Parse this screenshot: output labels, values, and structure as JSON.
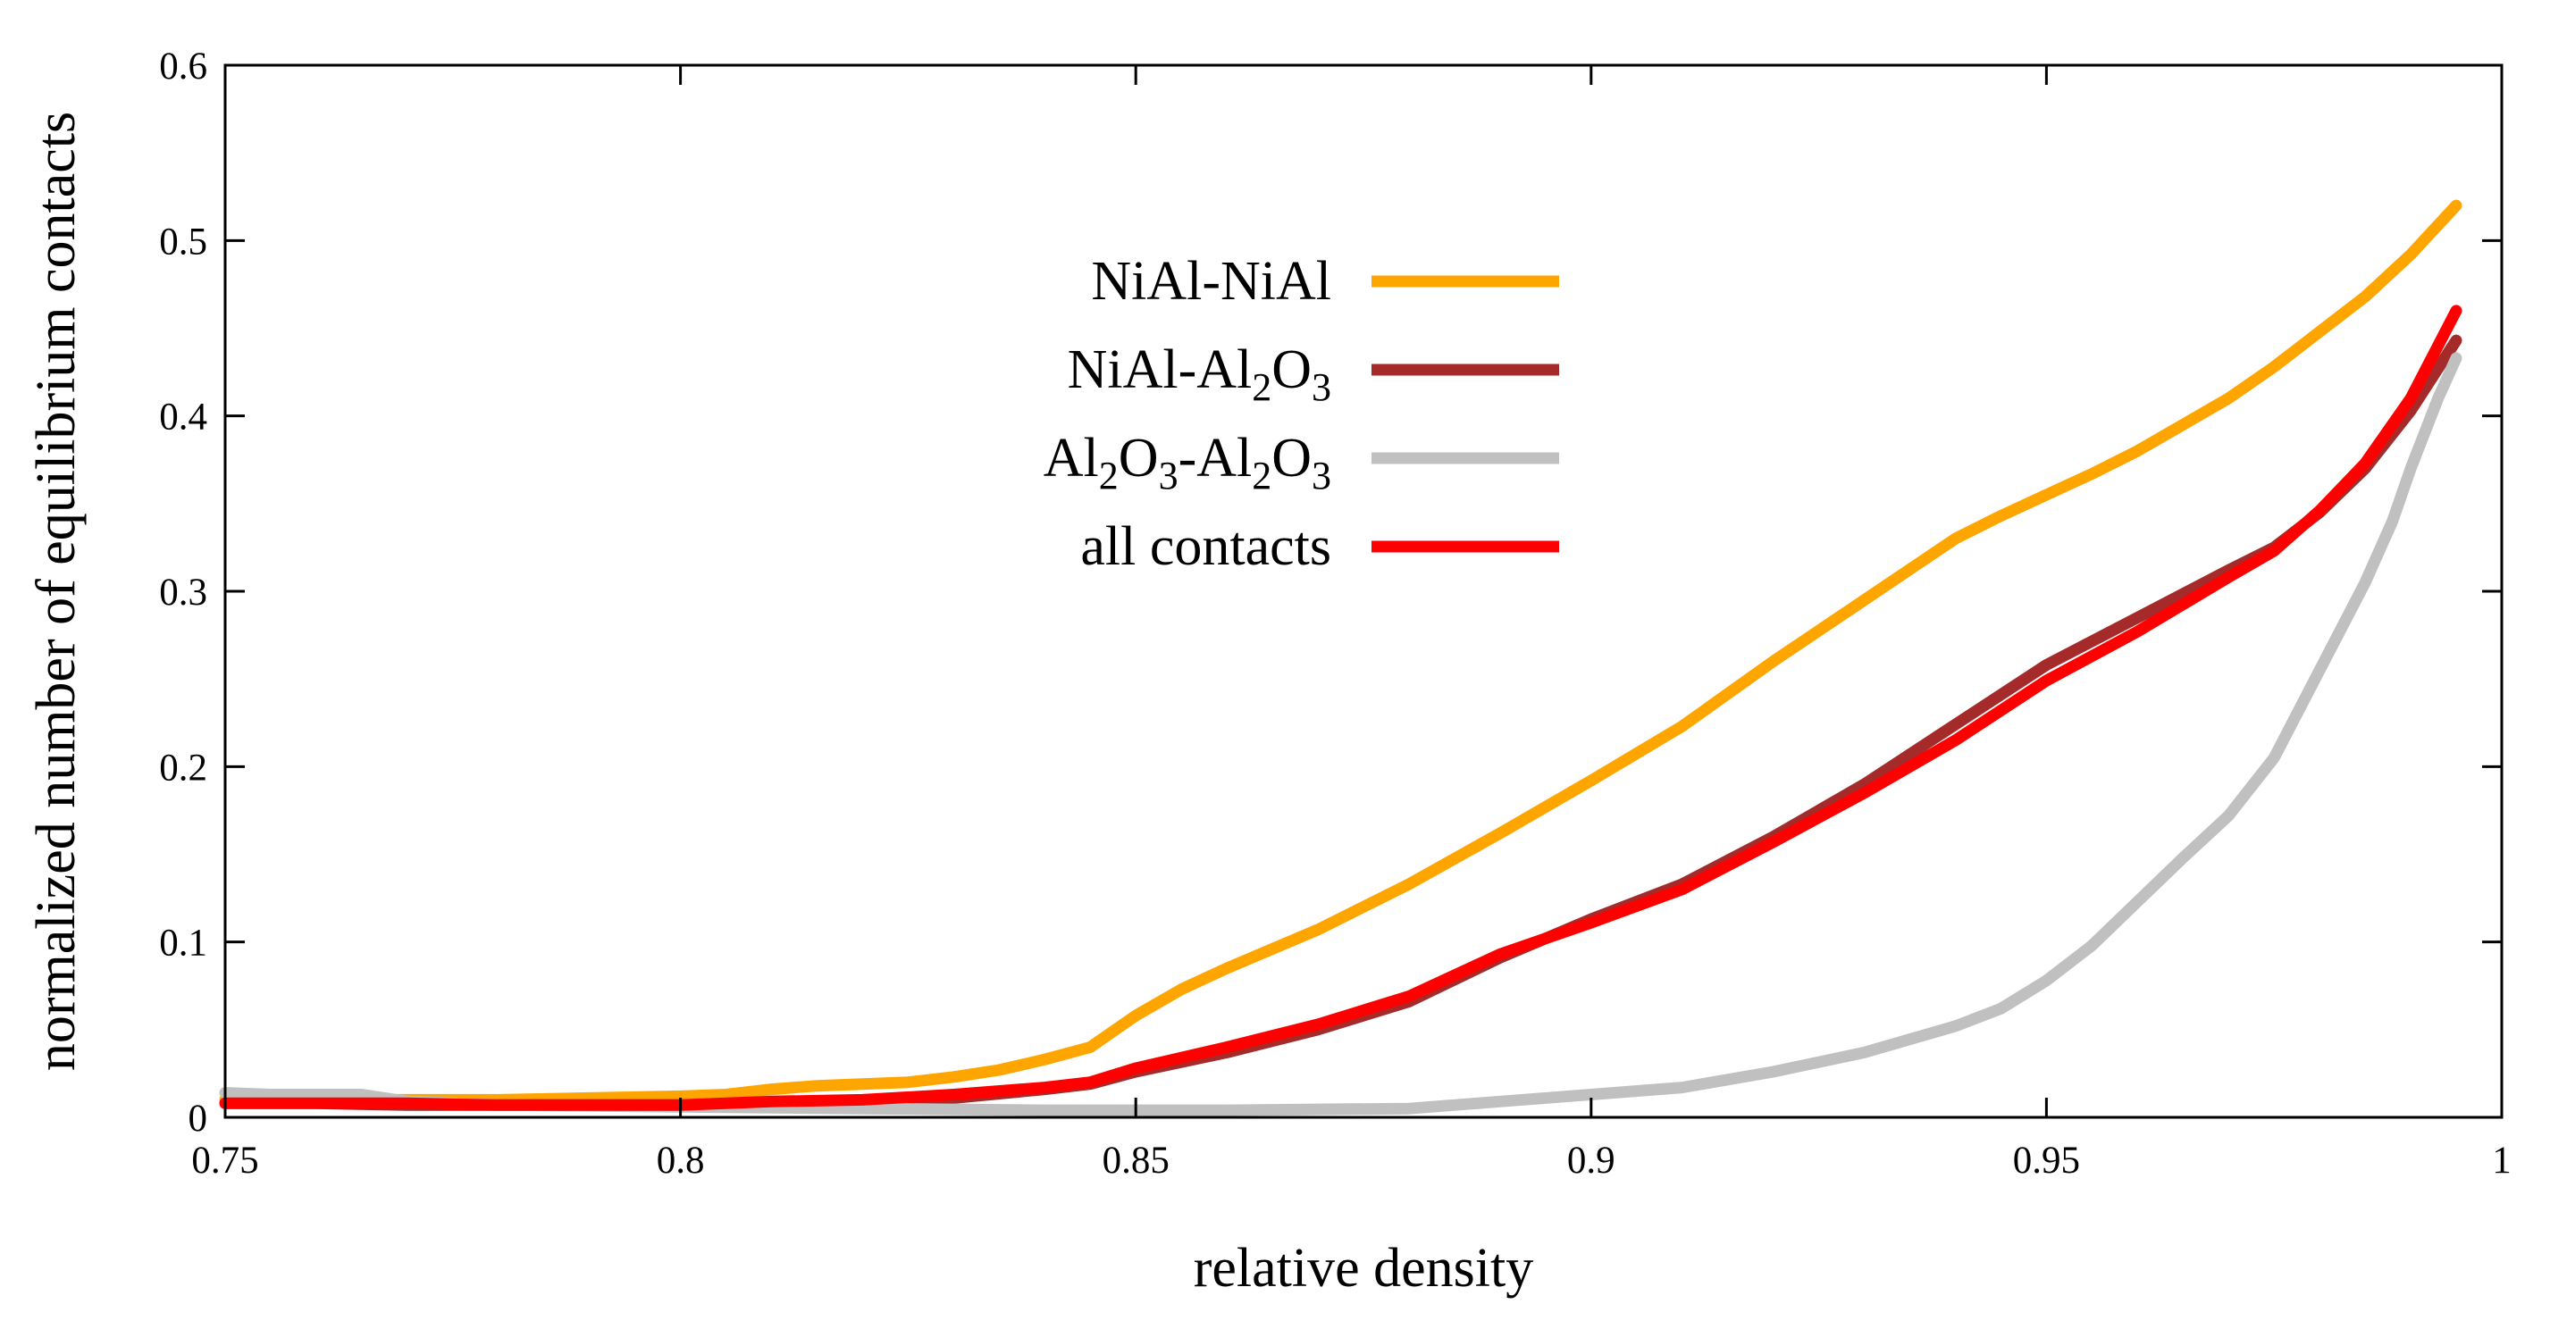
{
  "chart_data": {
    "type": "line",
    "title": "",
    "xlabel": "relative density",
    "ylabel": "normalized number of equilibrium contacts",
    "xlim": [
      0.75,
      1.0
    ],
    "ylim": [
      0,
      0.6
    ],
    "xticks": [
      0.75,
      0.8,
      0.85,
      0.9,
      0.95,
      1.0
    ],
    "xtick_labels": [
      "0.75",
      "0.8",
      "0.85",
      "0.9",
      "0.95",
      "1"
    ],
    "yticks": [
      0,
      0.1,
      0.2,
      0.3,
      0.4,
      0.5,
      0.6
    ],
    "ytick_labels": [
      "0",
      "0.1",
      "0.2",
      "0.3",
      "0.4",
      "0.5",
      "0.6"
    ],
    "grid": false,
    "legend_position": "upper-center",
    "series": [
      {
        "name": "NiAl-NiAl",
        "label_parts": [
          {
            "t": "NiAl-NiAl",
            "sub": false
          }
        ],
        "color": "#ffa500",
        "x": [
          0.75,
          0.76,
          0.77,
          0.78,
          0.79,
          0.8,
          0.805,
          0.81,
          0.815,
          0.82,
          0.825,
          0.83,
          0.835,
          0.84,
          0.845,
          0.85,
          0.855,
          0.86,
          0.87,
          0.88,
          0.89,
          0.9,
          0.91,
          0.92,
          0.93,
          0.94,
          0.945,
          0.95,
          0.955,
          0.96,
          0.97,
          0.975,
          0.98,
          0.985,
          0.99,
          0.995
        ],
        "y": [
          0.01,
          0.01,
          0.01,
          0.01,
          0.011,
          0.012,
          0.013,
          0.016,
          0.018,
          0.019,
          0.02,
          0.023,
          0.027,
          0.033,
          0.04,
          0.058,
          0.073,
          0.085,
          0.107,
          0.133,
          0.162,
          0.192,
          0.223,
          0.26,
          0.295,
          0.33,
          0.343,
          0.355,
          0.367,
          0.38,
          0.41,
          0.428,
          0.448,
          0.468,
          0.492,
          0.52
        ]
      },
      {
        "name": "NiAl-Al2O3",
        "label_parts": [
          {
            "t": "NiAl-Al",
            "sub": false
          },
          {
            "t": "2",
            "sub": true
          },
          {
            "t": "O",
            "sub": false
          },
          {
            "t": "3",
            "sub": true
          }
        ],
        "color": "#a52a2a",
        "x": [
          0.75,
          0.76,
          0.77,
          0.78,
          0.79,
          0.8,
          0.81,
          0.82,
          0.83,
          0.84,
          0.845,
          0.85,
          0.86,
          0.87,
          0.88,
          0.89,
          0.9,
          0.91,
          0.92,
          0.93,
          0.94,
          0.95,
          0.96,
          0.97,
          0.975,
          0.98,
          0.985,
          0.99,
          0.995
        ],
        "y": [
          0.008,
          0.008,
          0.007,
          0.007,
          0.007,
          0.007,
          0.008,
          0.009,
          0.011,
          0.016,
          0.019,
          0.026,
          0.037,
          0.05,
          0.066,
          0.091,
          0.113,
          0.133,
          0.16,
          0.19,
          0.224,
          0.258,
          0.285,
          0.312,
          0.325,
          0.345,
          0.37,
          0.403,
          0.443
        ]
      },
      {
        "name": "Al2O3-Al2O3",
        "label_parts": [
          {
            "t": "Al",
            "sub": false
          },
          {
            "t": "2",
            "sub": true
          },
          {
            "t": "O",
            "sub": false
          },
          {
            "t": "3",
            "sub": true
          },
          {
            "t": "-Al",
            "sub": false
          },
          {
            "t": "2",
            "sub": true
          },
          {
            "t": "O",
            "sub": false
          },
          {
            "t": "3",
            "sub": true
          }
        ],
        "color": "#c0c0c0",
        "x": [
          0.75,
          0.755,
          0.76,
          0.765,
          0.77,
          0.78,
          0.8,
          0.82,
          0.84,
          0.86,
          0.88,
          0.89,
          0.9,
          0.91,
          0.92,
          0.93,
          0.94,
          0.945,
          0.95,
          0.955,
          0.96,
          0.965,
          0.97,
          0.975,
          0.98,
          0.985,
          0.988,
          0.99,
          0.993,
          0.995
        ],
        "y": [
          0.014,
          0.013,
          0.013,
          0.013,
          0.009,
          0.007,
          0.006,
          0.005,
          0.004,
          0.004,
          0.005,
          0.009,
          0.013,
          0.017,
          0.026,
          0.037,
          0.052,
          0.062,
          0.078,
          0.098,
          0.123,
          0.148,
          0.172,
          0.205,
          0.255,
          0.305,
          0.34,
          0.37,
          0.41,
          0.433
        ]
      },
      {
        "name": "all contacts",
        "label_parts": [
          {
            "t": "all contacts",
            "sub": false
          }
        ],
        "color": "#ff0000",
        "x": [
          0.75,
          0.76,
          0.77,
          0.78,
          0.79,
          0.8,
          0.81,
          0.82,
          0.83,
          0.84,
          0.845,
          0.85,
          0.86,
          0.87,
          0.88,
          0.89,
          0.9,
          0.91,
          0.92,
          0.93,
          0.94,
          0.95,
          0.96,
          0.97,
          0.975,
          0.98,
          0.985,
          0.99,
          0.995
        ],
        "y": [
          0.008,
          0.008,
          0.008,
          0.007,
          0.007,
          0.007,
          0.009,
          0.01,
          0.013,
          0.017,
          0.02,
          0.028,
          0.04,
          0.053,
          0.069,
          0.093,
          0.111,
          0.13,
          0.157,
          0.185,
          0.215,
          0.249,
          0.277,
          0.308,
          0.323,
          0.346,
          0.373,
          0.41,
          0.46
        ]
      }
    ]
  }
}
